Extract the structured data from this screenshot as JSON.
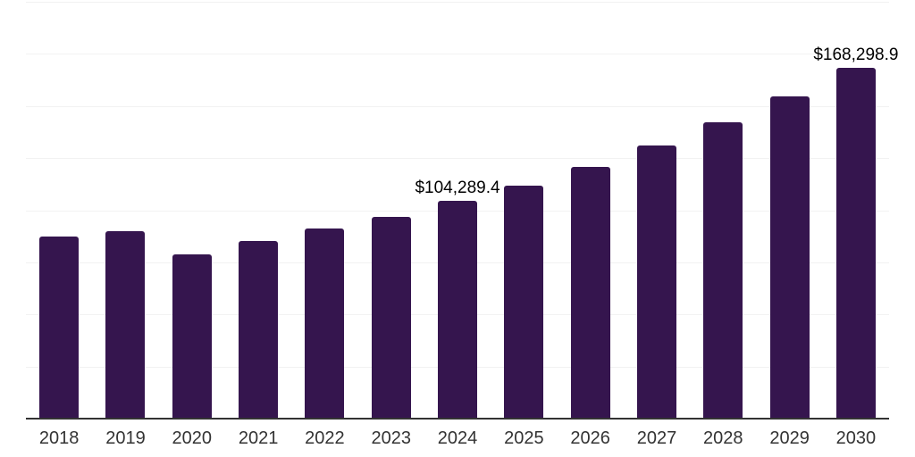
{
  "chart_data": {
    "type": "bar",
    "categories": [
      "2018",
      "2019",
      "2020",
      "2021",
      "2022",
      "2023",
      "2024",
      "2025",
      "2026",
      "2027",
      "2028",
      "2029",
      "2030"
    ],
    "values": [
      87500,
      90100,
      78800,
      85200,
      91200,
      96900,
      104289.4,
      111900,
      120900,
      131200,
      142100,
      154800,
      168298.9
    ],
    "data_labels": [
      "",
      "",
      "",
      "",
      "",
      "",
      "$104,289.4",
      "",
      "",
      "",
      "",
      "",
      "$168,298.9"
    ],
    "xlabel": "",
    "ylabel": "",
    "ylim": [
      0,
      200000
    ],
    "gridline_step": 25000,
    "grid": "horizontal-only, light gray, no y-axis tick labels",
    "legend": "none",
    "colors": {
      "bar": "#35154e",
      "axis_line": "#333333",
      "gridline": "#f2f2f2",
      "tick_label": "#333333",
      "data_label": "#000000",
      "background": "#ffffff"
    }
  }
}
